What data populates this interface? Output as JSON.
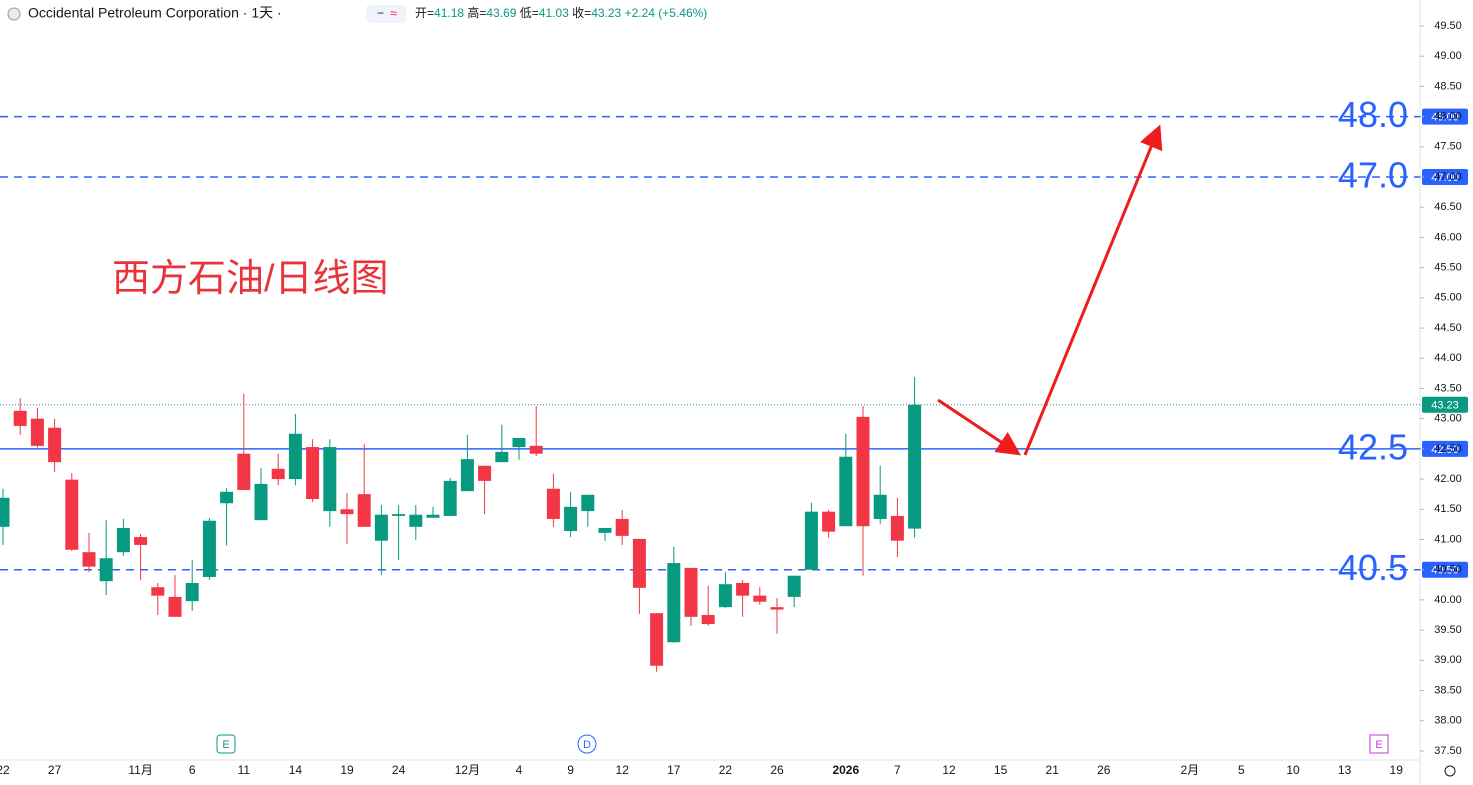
{
  "chart_data": {
    "type": "candlestick",
    "title": "Occidental Petroleum Corporation · 1天 ·",
    "header": {
      "open_label": "开=",
      "open": 41.18,
      "high_label": "高=",
      "high": 43.69,
      "low_label": "低=",
      "low": 41.03,
      "close_label": "收=",
      "close": 43.23,
      "change": "+2.24",
      "change_pct": "(+5.46%)"
    },
    "annotation": "西方石油/日线图",
    "events": [
      {
        "label": "E"
      },
      {
        "label": "D"
      },
      {
        "label": "E"
      }
    ],
    "up_color": "#089981",
    "down_color": "#f23645",
    "level_color": "#2962ff",
    "categories": [
      "22",
      null,
      null,
      "27",
      null,
      null,
      null,
      null,
      "11月",
      null,
      null,
      "6",
      null,
      null,
      "11",
      null,
      null,
      "14",
      null,
      null,
      "19",
      null,
      null,
      "24",
      null,
      null,
      null,
      "12月",
      null,
      null,
      "4",
      null,
      null,
      "9",
      null,
      null,
      "12",
      null,
      null,
      "17",
      null,
      null,
      "22",
      null,
      null,
      "26",
      null,
      null,
      null,
      "2026",
      null,
      null,
      "7",
      null,
      null,
      "12",
      null,
      null,
      "15",
      null,
      null,
      "21",
      null,
      null,
      "26",
      null,
      null,
      null,
      null,
      "2月",
      null,
      null,
      "5",
      null,
      null,
      "10",
      null,
      null,
      "13",
      null,
      null,
      "19"
    ],
    "open": [
      41.21,
      43.13,
      43.0,
      42.85,
      41.99,
      40.79,
      40.31,
      40.79,
      41.04,
      40.21,
      40.05,
      39.98,
      40.38,
      41.6,
      42.42,
      41.32,
      42.17,
      42.0,
      42.53,
      41.47,
      41.5,
      41.75,
      40.98,
      41.39,
      41.21,
      41.36,
      41.39,
      41.8,
      42.22,
      42.28,
      42.53,
      42.55,
      41.84,
      41.14,
      41.47,
      41.11,
      41.34,
      41.01,
      39.78,
      39.3,
      40.53,
      39.75,
      39.88,
      40.28,
      40.07,
      39.88,
      40.05,
      40.5,
      41.46,
      41.22,
      43.03,
      41.34,
      41.39,
      41.18,
      null,
      null,
      null,
      null,
      null,
      null,
      null,
      null,
      null,
      null,
      null,
      null,
      null,
      null,
      null,
      null,
      null,
      null,
      null,
      null,
      null,
      null,
      null,
      null,
      null,
      null,
      null,
      null
    ],
    "high": [
      41.84,
      43.34,
      43.18,
      43.0,
      42.1,
      41.11,
      41.32,
      41.34,
      41.09,
      40.28,
      40.41,
      40.66,
      41.36,
      41.85,
      43.41,
      42.18,
      42.42,
      43.08,
      42.66,
      42.66,
      41.77,
      42.58,
      41.57,
      41.57,
      41.57,
      41.54,
      42.02,
      42.73,
      42.22,
      42.9,
      42.68,
      43.21,
      42.09,
      41.79,
      41.74,
      41.19,
      41.49,
      41.01,
      39.78,
      40.88,
      40.53,
      40.23,
      40.46,
      40.33,
      40.21,
      40.03,
      40.4,
      41.61,
      41.49,
      42.75,
      43.21,
      42.22,
      41.69,
      43.69,
      null,
      null,
      null,
      null,
      null,
      null,
      null,
      null,
      null,
      null,
      null,
      null,
      null,
      null,
      null,
      null,
      null,
      null,
      null,
      null,
      null,
      null,
      null,
      null,
      null,
      null,
      null,
      null
    ],
    "low": [
      40.91,
      42.73,
      42.52,
      42.12,
      40.81,
      40.46,
      40.08,
      40.73,
      40.33,
      39.75,
      39.72,
      39.82,
      40.33,
      40.9,
      41.82,
      41.32,
      41.9,
      41.9,
      41.62,
      41.21,
      40.93,
      41.21,
      40.41,
      40.66,
      40.99,
      41.36,
      41.39,
      41.8,
      41.42,
      42.28,
      42.32,
      42.38,
      41.21,
      41.04,
      41.21,
      40.98,
      40.91,
      39.77,
      38.81,
      39.29,
      39.57,
      39.57,
      39.87,
      39.72,
      39.92,
      39.44,
      39.88,
      40.5,
      41.03,
      41.22,
      40.4,
      41.26,
      40.71,
      41.03,
      null,
      null,
      null,
      null,
      null,
      null,
      null,
      null,
      null,
      null,
      null,
      null,
      null,
      null,
      null,
      null,
      null,
      null,
      null,
      null,
      null,
      null,
      null,
      null,
      null,
      null,
      null,
      null
    ],
    "close": [
      41.69,
      42.88,
      42.55,
      42.28,
      40.83,
      40.55,
      40.69,
      41.19,
      40.91,
      40.07,
      39.72,
      40.28,
      41.31,
      41.79,
      41.82,
      41.92,
      42.0,
      42.75,
      41.67,
      42.53,
      41.42,
      41.21,
      41.41,
      41.42,
      41.41,
      41.41,
      41.97,
      42.33,
      41.97,
      42.45,
      42.68,
      42.42,
      41.34,
      41.54,
      41.74,
      41.19,
      41.06,
      40.2,
      38.91,
      40.61,
      39.72,
      39.6,
      40.26,
      40.07,
      39.97,
      39.84,
      40.4,
      41.46,
      41.13,
      42.37,
      41.22,
      41.74,
      40.98,
      43.23,
      null,
      null,
      null,
      null,
      null,
      null,
      null,
      null,
      null,
      null,
      null,
      null,
      null,
      null,
      null,
      null,
      null,
      null,
      null,
      null,
      null,
      null,
      null,
      null,
      null,
      null,
      null,
      null
    ],
    "ylim": [
      37.35,
      49.93
    ],
    "yticks": [
      {
        "value": 37.5,
        "label": "37.50"
      },
      {
        "value": 38,
        "label": "38.00"
      },
      {
        "value": 38.5,
        "label": "38.50"
      },
      {
        "value": 39,
        "label": "39.00"
      },
      {
        "value": 39.5,
        "label": "39.50"
      },
      {
        "value": 40,
        "label": "40.00"
      },
      {
        "value": 40.5,
        "label": "40.50"
      },
      {
        "value": 41,
        "label": "41.00"
      },
      {
        "value": 41.5,
        "label": "41.50"
      },
      {
        "value": 42,
        "label": "42.00"
      },
      {
        "value": 42.5,
        "label": "42.50"
      },
      {
        "value": 43,
        "label": "43.00"
      },
      {
        "value": 43.5,
        "label": "43.50"
      },
      {
        "value": 44,
        "label": "44.00"
      },
      {
        "value": 44.5,
        "label": "44.50"
      },
      {
        "value": 45,
        "label": "45.00"
      },
      {
        "value": 45.5,
        "label": "45.50"
      },
      {
        "value": 46,
        "label": "46.00"
      },
      {
        "value": 46.5,
        "label": "46.50"
      },
      {
        "value": 47,
        "label": "47.00"
      },
      {
        "value": 47.5,
        "label": "47.50"
      },
      {
        "value": 48,
        "label": "48.00"
      },
      {
        "value": 48.5,
        "label": "48.50"
      },
      {
        "value": 49,
        "label": "49.00"
      },
      {
        "value": 49.5,
        "label": "49.50"
      }
    ],
    "last_price": 43.23,
    "levels": [
      {
        "value": 48,
        "label": "48.0",
        "tag": "48.00",
        "style": "dashed"
      },
      {
        "value": 47,
        "label": "47.0",
        "tag": "47.00",
        "style": "dashed"
      },
      {
        "value": 42.5,
        "label": "42.5",
        "tag": "42.50",
        "style": "solid"
      },
      {
        "value": 40.5,
        "label": "40.5",
        "tag": "40.50",
        "style": "dashed"
      }
    ]
  }
}
